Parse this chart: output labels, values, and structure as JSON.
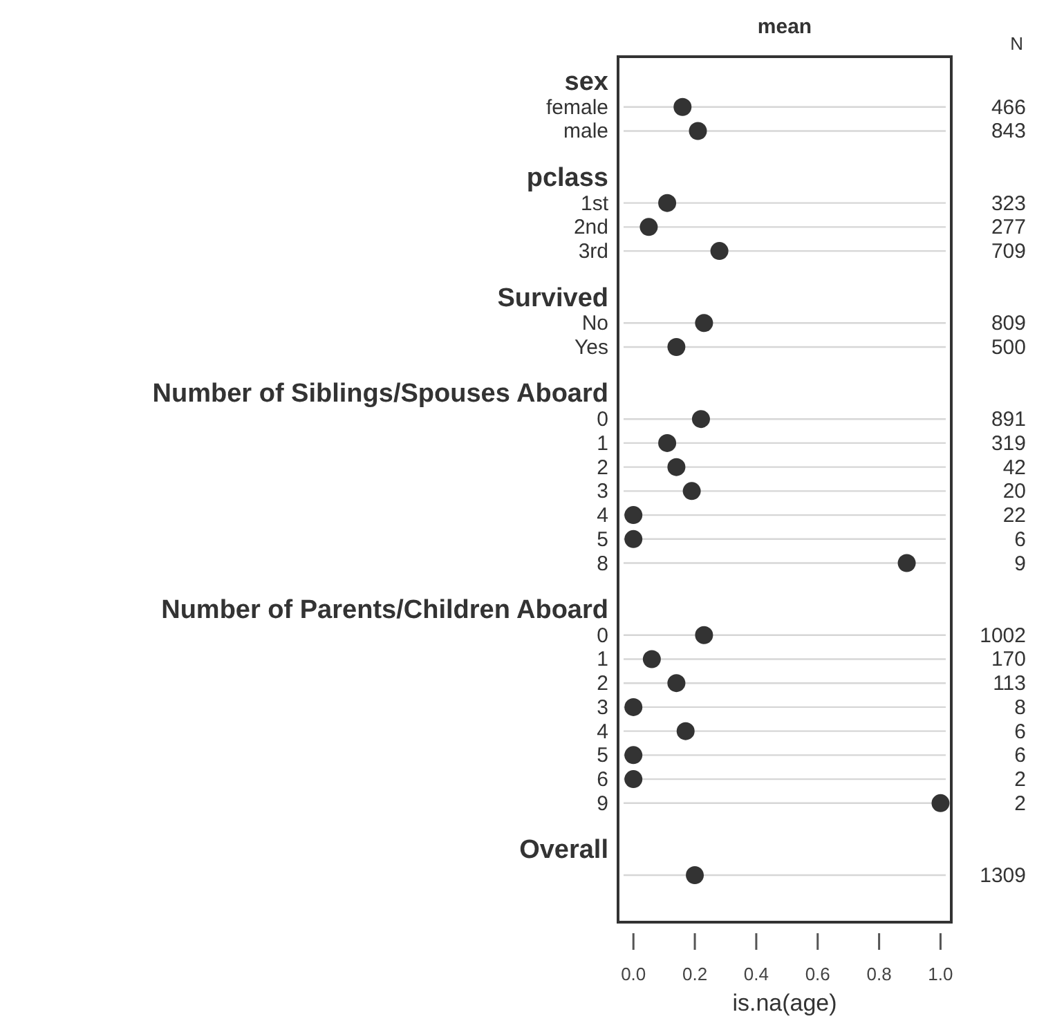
{
  "chart_data": {
    "type": "scatter",
    "orientation": "horizontal",
    "title": "mean",
    "xlabel": "is.na(age)",
    "categories": [
      "sex",
      "female",
      "male",
      "pclass",
      "1st",
      "2nd",
      "3rd",
      "Survived",
      "No",
      "Yes",
      "Number of Siblings/Spouses Aboard",
      "0",
      "1",
      "2",
      "3",
      "4",
      "5",
      "8",
      "Number of Parents/Children Aboard",
      "0",
      "1",
      "2",
      "3",
      "4",
      "5",
      "6",
      "9",
      "Overall",
      null
    ],
    "series": [
      {
        "color": "#333333",
        "values": [
          null,
          0.16,
          0.21,
          null,
          0.11,
          0.05,
          0.28,
          null,
          0.23,
          0.14,
          null,
          0.22,
          0.11,
          0.14,
          0.19,
          0,
          0,
          0.89,
          null,
          0.23,
          0.06,
          0.14,
          0,
          0.17,
          0,
          0,
          1,
          null,
          0.2
        ],
        "name": null
      }
    ],
    "y2_categories": [
      null,
      "466",
      "843",
      null,
      "323",
      "277",
      "709",
      null,
      "809",
      "500",
      null,
      "891",
      "319",
      "42",
      "20",
      "22",
      "6",
      "9",
      null,
      "1002",
      "170",
      "113",
      "8",
      "6",
      "6",
      "2",
      "2",
      null,
      "1309"
    ],
    "annotations": [
      "N"
    ],
    "xlim": [
      -0.05,
      1.035
    ],
    "xticks": [
      {
        "value": 0,
        "label": "0.0"
      },
      {
        "value": 0.2,
        "label": "0.2"
      },
      {
        "value": 0.4,
        "label": "0.4"
      },
      {
        "value": 0.6,
        "label": "0.6"
      },
      {
        "value": 0.8,
        "label": "0.8"
      },
      {
        "value": 1,
        "label": "1.0"
      }
    ],
    "grid": "y",
    "marker": "circle"
  }
}
